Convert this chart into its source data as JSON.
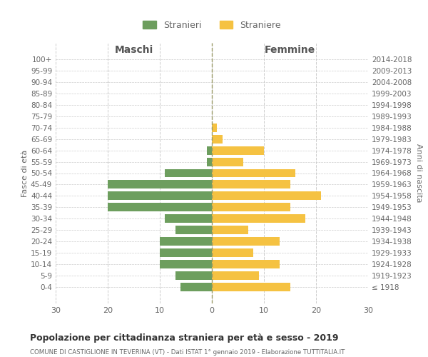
{
  "age_groups": [
    "100+",
    "95-99",
    "90-94",
    "85-89",
    "80-84",
    "75-79",
    "70-74",
    "65-69",
    "60-64",
    "55-59",
    "50-54",
    "45-49",
    "40-44",
    "35-39",
    "30-34",
    "25-29",
    "20-24",
    "15-19",
    "10-14",
    "5-9",
    "0-4"
  ],
  "birth_years": [
    "≤ 1918",
    "1919-1923",
    "1924-1928",
    "1929-1933",
    "1934-1938",
    "1939-1943",
    "1944-1948",
    "1949-1953",
    "1954-1958",
    "1959-1963",
    "1964-1968",
    "1969-1973",
    "1974-1978",
    "1979-1983",
    "1984-1988",
    "1989-1993",
    "1994-1998",
    "1999-2003",
    "2004-2008",
    "2009-2013",
    "2014-2018"
  ],
  "maschi": [
    0,
    0,
    0,
    0,
    0,
    0,
    0,
    0,
    1,
    1,
    9,
    20,
    20,
    20,
    9,
    7,
    10,
    10,
    10,
    7,
    6
  ],
  "femmine": [
    0,
    0,
    0,
    0,
    0,
    0,
    1,
    2,
    10,
    6,
    16,
    15,
    21,
    15,
    18,
    7,
    13,
    8,
    13,
    9,
    15
  ],
  "color_maschi": "#6d9e5e",
  "color_femmine": "#f5c242",
  "title": "Popolazione per cittadinanza straniera per età e sesso - 2019",
  "subtitle": "COMUNE DI CASTIGLIONE IN TEVERINA (VT) - Dati ISTAT 1° gennaio 2019 - Elaborazione TUTTITALIA.IT",
  "legend_maschi": "Stranieri",
  "legend_femmine": "Straniere",
  "xlabel_left": "Maschi",
  "xlabel_right": "Femmine",
  "ylabel_left": "Fasce di età",
  "ylabel_right": "Anni di nascita",
  "xlim": 30,
  "background_color": "#ffffff",
  "grid_color": "#cccccc",
  "tick_color": "#888888",
  "label_color": "#666666"
}
